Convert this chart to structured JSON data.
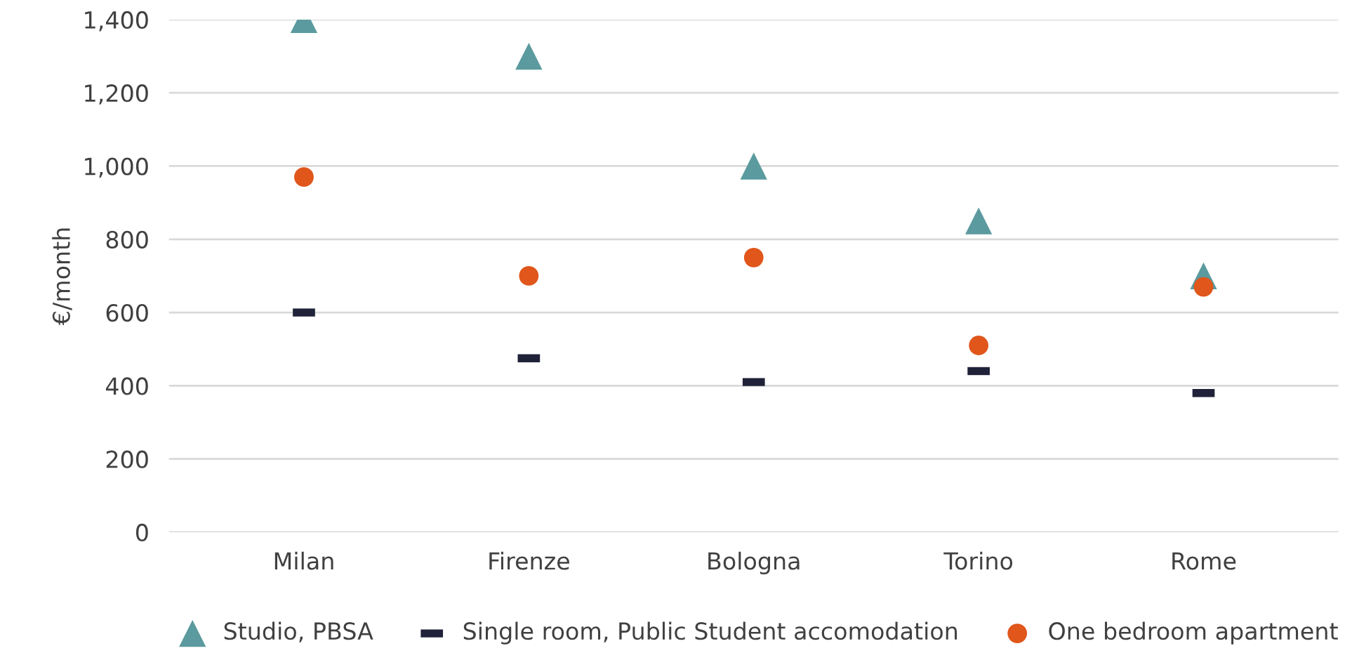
{
  "chart_data": {
    "type": "scatter",
    "ylabel": "€/month",
    "categories": [
      "Milan",
      "Firenze",
      "Bologna",
      "Torino",
      "Rome"
    ],
    "series": [
      {
        "name": "Studio, PBSA",
        "color": "#5b9a9e",
        "marker": "triangle",
        "values": [
          1400,
          1300,
          1000,
          850,
          700
        ]
      },
      {
        "name": "Single room, Public Student accomodation",
        "color": "#1f2238",
        "values": [
          600,
          475,
          410,
          440,
          380
        ]
      },
      {
        "name": "One bedroom apartment",
        "color": "#e0561b",
        "marker": "circle",
        "values": [
          970,
          700,
          750,
          510,
          670
        ]
      }
    ],
    "ylim": [
      0,
      1400
    ],
    "yticks": [
      {
        "value": 0,
        "label": "0"
      },
      {
        "value": 200,
        "label": "200"
      },
      {
        "value": 400,
        "label": "400"
      },
      {
        "value": 600,
        "label": "600"
      },
      {
        "value": 800,
        "label": "800"
      },
      {
        "value": 1000,
        "label": "1,000"
      },
      {
        "value": 1200,
        "label": "1,200"
      },
      {
        "value": 1400,
        "label": "1,400"
      }
    ],
    "grid": "y",
    "legend": "bottom"
  }
}
